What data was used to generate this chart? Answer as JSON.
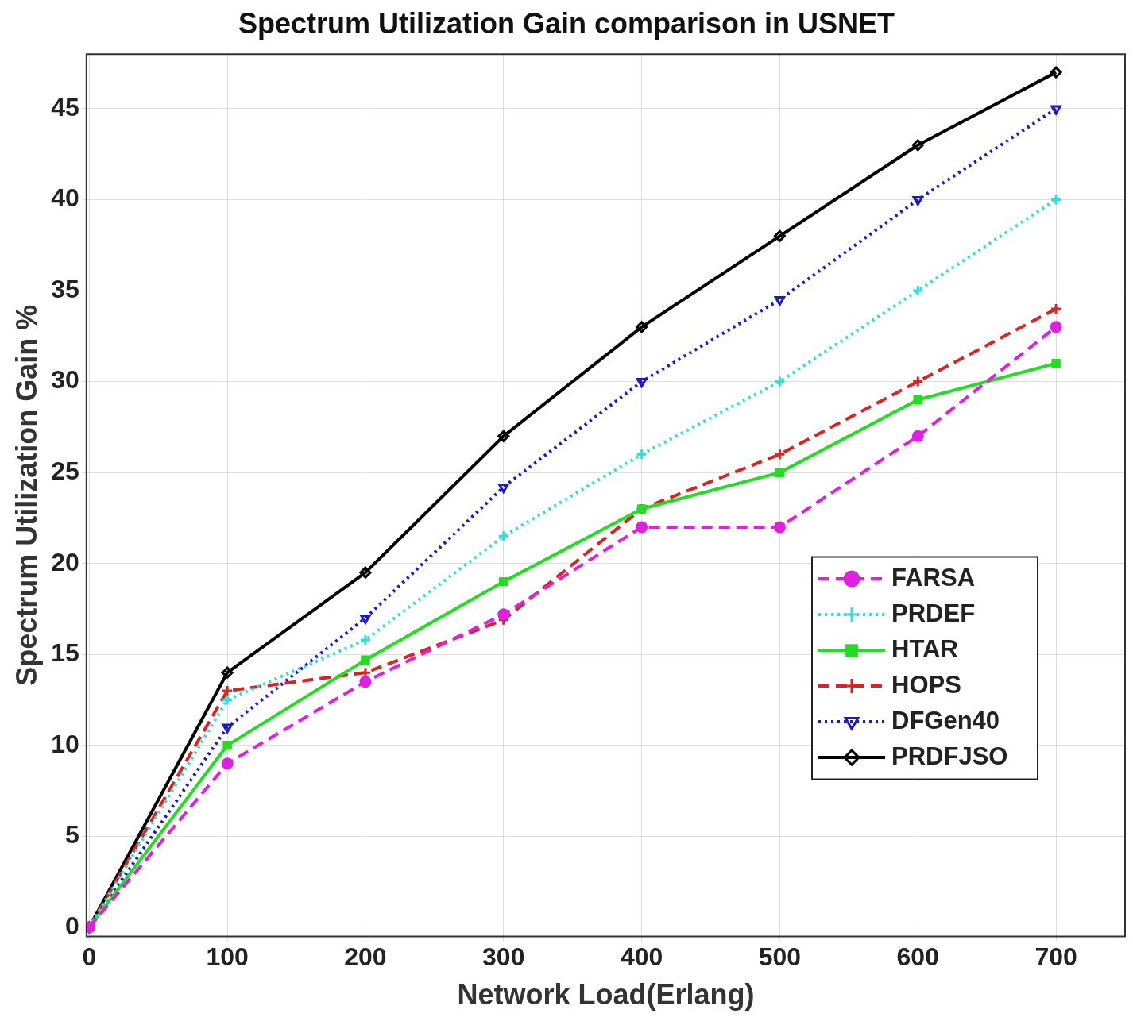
{
  "chart_data": {
    "type": "line",
    "title": "Spectrum Utilization Gain comparison in USNET",
    "xlabel": "Network Load(Erlang)",
    "ylabel": "Spectrum Utilization Gain %",
    "x": [
      0,
      100,
      200,
      300,
      400,
      500,
      600,
      700
    ],
    "series": [
      {
        "name": "FARSA",
        "color": "#e020e0",
        "marker": "circle",
        "line_style": "dashed",
        "values": [
          0,
          9,
          13.5,
          17.2,
          22,
          22,
          27,
          33
        ]
      },
      {
        "name": "PRDEF",
        "color": "#33dddd",
        "marker": "cross",
        "line_style": "dotted",
        "values": [
          0,
          12.5,
          15.8,
          21.5,
          26,
          30,
          35,
          40
        ]
      },
      {
        "name": "HTAR",
        "color": "#22dd22",
        "marker": "square",
        "line_style": "solid",
        "values": [
          0,
          10,
          14.7,
          19,
          23,
          25,
          29,
          31
        ]
      },
      {
        "name": "HOPS",
        "color": "#dd2222",
        "marker": "cross",
        "line_style": "dashed",
        "values": [
          0,
          13,
          14,
          16.9,
          23,
          26,
          30,
          34
        ]
      },
      {
        "name": "DFGen40",
        "color": "#1a1acc",
        "marker": "triangle",
        "line_style": "dotted",
        "values": [
          0,
          11,
          17,
          24.2,
          30,
          34.5,
          40,
          45
        ]
      },
      {
        "name": "PRDFJSO",
        "color": "#000000",
        "marker": "diamond",
        "line_style": "solid",
        "values": [
          0,
          14,
          19.5,
          27,
          33,
          38,
          43,
          47
        ]
      }
    ],
    "xlim": [
      -2,
      750
    ],
    "xticks": [
      0,
      100,
      200,
      300,
      400,
      500,
      600,
      700
    ],
    "ylim": [
      -0.5,
      48
    ],
    "yticks": [
      0,
      5,
      10,
      15,
      20,
      25,
      30,
      35,
      40,
      45
    ],
    "grid": true,
    "legend": "right"
  }
}
